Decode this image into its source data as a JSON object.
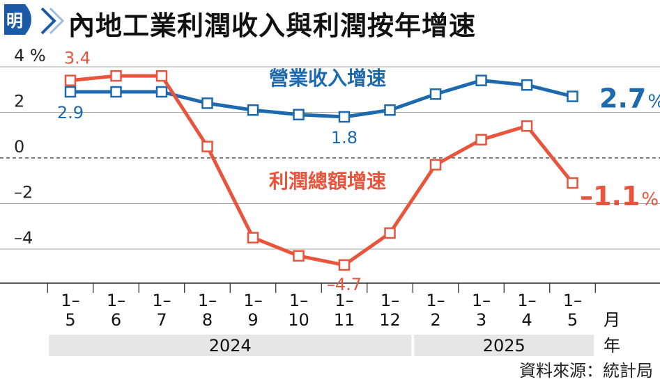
{
  "header": {
    "logo_text": "明",
    "title": "內地工業利潤收入與利潤按年增速"
  },
  "source": "資料來源：統計局",
  "colors": {
    "revenue": "#1c6aad",
    "profit": "#e8553c",
    "text": "#111111",
    "year_band": "#e6e6e6",
    "logo": "#1c5aa6"
  },
  "chart_data": {
    "type": "line",
    "unit": "%",
    "x_month_label": "月",
    "x_year_label": "年",
    "categories": [
      "1–5",
      "1–6",
      "1–7",
      "1–8",
      "1–9",
      "1–10",
      "1–11",
      "1–12",
      "1–2",
      "1–3",
      "1–4",
      "1–5"
    ],
    "years": [
      {
        "label": "2024",
        "start": 0,
        "end": 7
      },
      {
        "label": "2025",
        "start": 8,
        "end": 11
      }
    ],
    "yticks": [
      {
        "value": 4,
        "label": "4 %"
      },
      {
        "value": 2,
        "label": "2"
      },
      {
        "value": 0,
        "label": "0"
      },
      {
        "value": -2,
        "label": "–2"
      },
      {
        "value": -4,
        "label": "–4"
      }
    ],
    "ylim": [
      -6,
      4.5
    ],
    "series": [
      {
        "name": "營業收入增速",
        "color": "#1c6aad",
        "values": [
          2.9,
          2.9,
          2.9,
          2.4,
          2.1,
          1.9,
          1.8,
          2.1,
          2.8,
          3.4,
          3.2,
          2.7
        ],
        "labels": [
          {
            "index": 0,
            "text": "2.9"
          },
          {
            "index": 6,
            "text": "1.8"
          }
        ],
        "end_label": {
          "value": "2.7",
          "unit": "%"
        }
      },
      {
        "name": "利潤總額增速",
        "color": "#e8553c",
        "values": [
          3.4,
          3.6,
          3.6,
          0.5,
          -3.5,
          -4.3,
          -4.7,
          -3.3,
          -0.3,
          0.8,
          1.4,
          -1.1
        ],
        "labels": [
          {
            "index": 0,
            "text": "3.4"
          },
          {
            "index": 6,
            "text": "–4.7"
          }
        ],
        "end_label": {
          "value": "–1.1",
          "unit": "%"
        }
      }
    ],
    "grid": true,
    "zero_line": "dashed"
  }
}
